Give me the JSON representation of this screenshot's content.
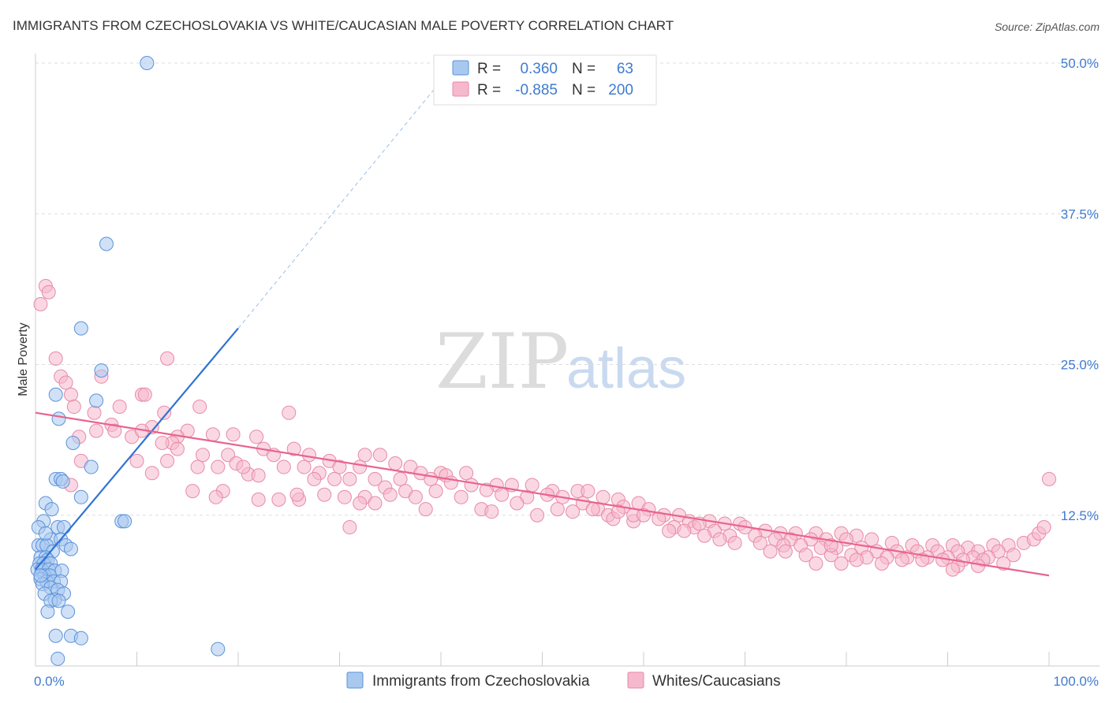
{
  "title": "IMMIGRANTS FROM CZECHOSLOVAKIA VS WHITE/CAUCASIAN MALE POVERTY CORRELATION CHART",
  "source": "Source: ZipAtlas.com",
  "watermark": {
    "zip": "ZIP",
    "atlas": "atlas"
  },
  "colors": {
    "blue_fill": "#a9c8f0",
    "blue_stroke": "#5b93d9",
    "blue_line": "#2f72d6",
    "pink_fill": "#f6b8cc",
    "pink_stroke": "#e88aa8",
    "pink_line": "#e8648f",
    "tick_text": "#3f7bd0"
  },
  "legend_box": {
    "rows": [
      {
        "r_label": "R =",
        "r_value": "0.360",
        "n_label": "N =",
        "n_value": "63"
      },
      {
        "r_label": "R =",
        "r_value": "-0.885",
        "n_label": "N =",
        "n_value": "200"
      }
    ]
  },
  "chart_data": {
    "type": "scatter",
    "xlabel": "",
    "ylabel": "Male Poverty",
    "xlim": [
      0,
      100
    ],
    "ylim": [
      0,
      50
    ],
    "x_tick_labels": [
      "0.0%",
      "100.0%"
    ],
    "y_ticks": [
      12.5,
      25.0,
      37.5,
      50.0
    ],
    "y_tick_labels": [
      "12.5%",
      "25.0%",
      "37.5%",
      "50.0%"
    ],
    "legend": [
      "Immigrants from Czechoslovakia",
      "Whites/Caucasians"
    ],
    "series": [
      {
        "name": "Immigrants from Czechoslovakia",
        "r": 0.36,
        "n": 63,
        "trend": {
          "x": [
            0,
            20
          ],
          "y": [
            8.0,
            28.0
          ],
          "dashed_to": [
            40,
            48.5
          ]
        },
        "points": [
          [
            11,
            50.0
          ],
          [
            7,
            35.0
          ],
          [
            4.5,
            28.0
          ],
          [
            6.5,
            24.5
          ],
          [
            6,
            22.0
          ],
          [
            2,
            22.5
          ],
          [
            2.3,
            20.5
          ],
          [
            3.7,
            18.5
          ],
          [
            5.5,
            16.5
          ],
          [
            2.0,
            15.5
          ],
          [
            2.5,
            15.5
          ],
          [
            2.7,
            15.3
          ],
          [
            4.5,
            14.0
          ],
          [
            1.0,
            13.5
          ],
          [
            1.6,
            13.0
          ],
          [
            8.5,
            12.0
          ],
          [
            8.8,
            12.0
          ],
          [
            0.8,
            12.0
          ],
          [
            2.2,
            11.5
          ],
          [
            2.8,
            11.5
          ],
          [
            1.5,
            10.5
          ],
          [
            2.5,
            10.5
          ],
          [
            0.3,
            10.0
          ],
          [
            0.7,
            10.0
          ],
          [
            1.1,
            10.0
          ],
          [
            3.0,
            10.0
          ],
          [
            3.5,
            9.7
          ],
          [
            1.7,
            9.5
          ],
          [
            0.5,
            9.0
          ],
          [
            1.0,
            9.0
          ],
          [
            1.2,
            8.8
          ],
          [
            0.4,
            8.5
          ],
          [
            0.8,
            8.5
          ],
          [
            1.5,
            8.5
          ],
          [
            0.2,
            8.0
          ],
          [
            0.6,
            8.0
          ],
          [
            1.3,
            8.0
          ],
          [
            1.9,
            7.9
          ],
          [
            2.6,
            7.9
          ],
          [
            0.9,
            7.5
          ],
          [
            1.4,
            7.5
          ],
          [
            0.5,
            7.2
          ],
          [
            1.1,
            7.0
          ],
          [
            1.8,
            7.0
          ],
          [
            2.5,
            7.0
          ],
          [
            0.7,
            6.8
          ],
          [
            1.5,
            6.5
          ],
          [
            2.2,
            6.3
          ],
          [
            0.9,
            6.0
          ],
          [
            2.8,
            6.0
          ],
          [
            1.9,
            5.5
          ],
          [
            1.5,
            5.4
          ],
          [
            2.3,
            5.4
          ],
          [
            1.2,
            4.5
          ],
          [
            3.2,
            4.5
          ],
          [
            2.0,
            2.5
          ],
          [
            3.5,
            2.5
          ],
          [
            4.5,
            2.3
          ],
          [
            18.0,
            1.4
          ],
          [
            2.2,
            0.6
          ],
          [
            0.3,
            11.5
          ],
          [
            1.0,
            11.0
          ],
          [
            0.5,
            7.5
          ]
        ]
      },
      {
        "name": "Whites/Caucasians",
        "r": -0.885,
        "n": 200,
        "trend": {
          "x": [
            0,
            100
          ],
          "y": [
            21.0,
            7.5
          ]
        },
        "points": [
          [
            0.5,
            30.0
          ],
          [
            1.0,
            31.5
          ],
          [
            1.3,
            31.0
          ],
          [
            2.0,
            25.5
          ],
          [
            13,
            25.5
          ],
          [
            2.5,
            24.0
          ],
          [
            3.0,
            23.5
          ],
          [
            6.5,
            24.0
          ],
          [
            3.5,
            22.5
          ],
          [
            10.5,
            22.5
          ],
          [
            10.8,
            22.5
          ],
          [
            3.8,
            21.5
          ],
          [
            5.8,
            21.0
          ],
          [
            8.3,
            21.5
          ],
          [
            12.7,
            21.0
          ],
          [
            16.2,
            21.5
          ],
          [
            25,
            21.0
          ],
          [
            7.5,
            20.0
          ],
          [
            11.5,
            19.8
          ],
          [
            15.0,
            19.5
          ],
          [
            6.0,
            19.5
          ],
          [
            7.8,
            19.5
          ],
          [
            9.5,
            19.0
          ],
          [
            14.0,
            19.0
          ],
          [
            17.5,
            19.2
          ],
          [
            19.5,
            19.2
          ],
          [
            4.3,
            19.0
          ],
          [
            21.8,
            19.0
          ],
          [
            13.5,
            18.5
          ],
          [
            22.5,
            18.0
          ],
          [
            25.5,
            18.0
          ],
          [
            14.0,
            18.0
          ],
          [
            16.5,
            17.5
          ],
          [
            19.0,
            17.5
          ],
          [
            10.0,
            17.0
          ],
          [
            23.5,
            17.5
          ],
          [
            27.0,
            17.5
          ],
          [
            32.5,
            17.5
          ],
          [
            34.0,
            17.5
          ],
          [
            29.0,
            17.0
          ],
          [
            26.5,
            16.5
          ],
          [
            13.0,
            17.0
          ],
          [
            18.0,
            16.5
          ],
          [
            19.8,
            16.8
          ],
          [
            24.5,
            16.5
          ],
          [
            28.0,
            16.0
          ],
          [
            30.0,
            16.5
          ],
          [
            32.0,
            16.5
          ],
          [
            35.5,
            16.8
          ],
          [
            37.0,
            16.5
          ],
          [
            38.0,
            16.0
          ],
          [
            40.0,
            16.0
          ],
          [
            42.5,
            16.0
          ],
          [
            21.0,
            15.9
          ],
          [
            11.5,
            16.0
          ],
          [
            22.0,
            15.8
          ],
          [
            27.5,
            15.5
          ],
          [
            29.5,
            15.5
          ],
          [
            31.0,
            15.5
          ],
          [
            33.5,
            15.5
          ],
          [
            36.0,
            15.5
          ],
          [
            39.0,
            15.5
          ],
          [
            40.5,
            15.8
          ],
          [
            41.0,
            15.2
          ],
          [
            43.0,
            15.0
          ],
          [
            45.5,
            15.0
          ],
          [
            47.0,
            15.0
          ],
          [
            49.0,
            15.0
          ],
          [
            51.0,
            14.5
          ],
          [
            53.5,
            14.5
          ],
          [
            34.5,
            14.8
          ],
          [
            36.5,
            14.5
          ],
          [
            39.5,
            14.5
          ],
          [
            44.5,
            14.6
          ],
          [
            46.0,
            14.2
          ],
          [
            48.5,
            14.0
          ],
          [
            50.5,
            14.2
          ],
          [
            52.0,
            14.0
          ],
          [
            54.5,
            14.5
          ],
          [
            56.0,
            14.0
          ],
          [
            57.5,
            13.8
          ],
          [
            59.5,
            13.5
          ],
          [
            28.5,
            14.2
          ],
          [
            30.5,
            14.0
          ],
          [
            35.0,
            14.2
          ],
          [
            37.5,
            14.0
          ],
          [
            42.0,
            14.0
          ],
          [
            22.0,
            13.8
          ],
          [
            24.0,
            13.8
          ],
          [
            26.0,
            13.8
          ],
          [
            32.5,
            14.0
          ],
          [
            47.5,
            13.5
          ],
          [
            51.5,
            13.0
          ],
          [
            54.0,
            13.5
          ],
          [
            55.5,
            13.0
          ],
          [
            58.0,
            13.2
          ],
          [
            60.5,
            13.0
          ],
          [
            62.0,
            12.5
          ],
          [
            63.5,
            12.5
          ],
          [
            33.5,
            13.5
          ],
          [
            38.5,
            13.0
          ],
          [
            44.0,
            13.0
          ],
          [
            45.0,
            12.8
          ],
          [
            49.5,
            12.5
          ],
          [
            53.0,
            12.8
          ],
          [
            56.5,
            12.5
          ],
          [
            57.0,
            12.2
          ],
          [
            59.0,
            12.0
          ],
          [
            61.5,
            12.2
          ],
          [
            64.5,
            12.0
          ],
          [
            66.5,
            12.0
          ],
          [
            68.0,
            11.8
          ],
          [
            69.5,
            11.8
          ],
          [
            63.0,
            11.5
          ],
          [
            65.0,
            11.5
          ],
          [
            67.0,
            11.2
          ],
          [
            70.0,
            11.5
          ],
          [
            72.0,
            11.2
          ],
          [
            73.5,
            11.0
          ],
          [
            75.0,
            11.0
          ],
          [
            77.0,
            11.0
          ],
          [
            79.5,
            11.0
          ],
          [
            81.0,
            10.8
          ],
          [
            64.0,
            11.2
          ],
          [
            66.0,
            10.8
          ],
          [
            68.5,
            10.8
          ],
          [
            71.0,
            10.8
          ],
          [
            73.0,
            10.5
          ],
          [
            74.5,
            10.5
          ],
          [
            76.5,
            10.5
          ],
          [
            78.0,
            10.5
          ],
          [
            80.0,
            10.5
          ],
          [
            82.5,
            10.5
          ],
          [
            84.5,
            10.2
          ],
          [
            86.5,
            10.0
          ],
          [
            88.5,
            10.0
          ],
          [
            90.5,
            10.0
          ],
          [
            92.0,
            9.8
          ],
          [
            94.5,
            10.0
          ],
          [
            96.0,
            10.0
          ],
          [
            97.5,
            10.2
          ],
          [
            98.5,
            10.5
          ],
          [
            99.0,
            11.0
          ],
          [
            100,
            15.5
          ],
          [
            99.5,
            11.5
          ],
          [
            59.0,
            12.5
          ],
          [
            62.5,
            11.2
          ],
          [
            67.5,
            10.5
          ],
          [
            69.0,
            10.2
          ],
          [
            71.5,
            10.2
          ],
          [
            73.8,
            10.0
          ],
          [
            75.5,
            10.0
          ],
          [
            77.5,
            9.8
          ],
          [
            79.0,
            9.8
          ],
          [
            81.5,
            9.8
          ],
          [
            83.0,
            9.5
          ],
          [
            85.0,
            9.5
          ],
          [
            87.0,
            9.5
          ],
          [
            89.0,
            9.5
          ],
          [
            91.0,
            9.5
          ],
          [
            93.0,
            9.5
          ],
          [
            95.0,
            9.5
          ],
          [
            72.5,
            9.5
          ],
          [
            74.0,
            9.5
          ],
          [
            76.0,
            9.2
          ],
          [
            78.5,
            9.2
          ],
          [
            80.5,
            9.2
          ],
          [
            82.0,
            9.0
          ],
          [
            84.0,
            9.0
          ],
          [
            86.0,
            9.0
          ],
          [
            88.0,
            9.0
          ],
          [
            90.0,
            9.0
          ],
          [
            92.5,
            9.0
          ],
          [
            94.0,
            9.0
          ],
          [
            96.5,
            9.2
          ],
          [
            85.5,
            8.8
          ],
          [
            87.5,
            8.8
          ],
          [
            89.5,
            8.8
          ],
          [
            91.5,
            8.8
          ],
          [
            93.5,
            8.8
          ],
          [
            95.5,
            8.5
          ],
          [
            83.5,
            8.5
          ],
          [
            81.0,
            8.8
          ],
          [
            77.0,
            8.5
          ],
          [
            79.5,
            8.5
          ],
          [
            91.0,
            8.3
          ],
          [
            93.0,
            8.3
          ],
          [
            90.5,
            8.0
          ],
          [
            78.5,
            10.0
          ],
          [
            60.0,
            12.5
          ],
          [
            55.0,
            13.0
          ],
          [
            57.5,
            12.8
          ],
          [
            65.5,
            11.8
          ],
          [
            16.0,
            16.5
          ],
          [
            20.5,
            16.5
          ],
          [
            10.5,
            19.5
          ],
          [
            12.5,
            18.5
          ],
          [
            32.0,
            13.5
          ],
          [
            31.0,
            11.5
          ],
          [
            18.5,
            14.5
          ],
          [
            15.5,
            14.5
          ],
          [
            17.8,
            14.0
          ],
          [
            25.8,
            14.2
          ],
          [
            3.5,
            15.0
          ],
          [
            4.5,
            17.0
          ]
        ]
      }
    ]
  }
}
